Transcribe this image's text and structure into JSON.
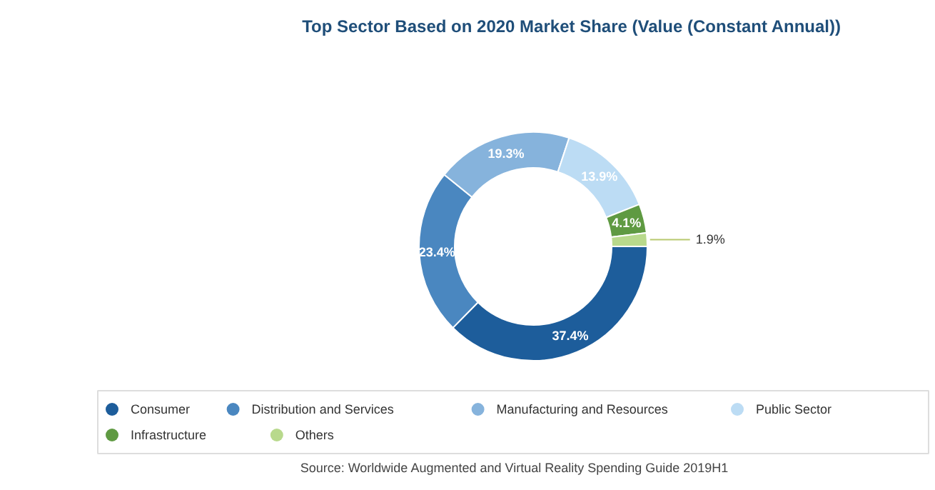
{
  "chart_data": {
    "type": "donut",
    "title": "Top Sector Based on 2020 Market Share (Value (Constant Annual))",
    "categories": [
      "Consumer",
      "Distribution and Services",
      "Manufacturing and Resources",
      "Public Sector",
      "Infrastructure",
      "Others"
    ],
    "values": [
      37.4,
      23.4,
      19.3,
      13.9,
      4.1,
      1.9
    ],
    "colors": [
      "#1d5d9b",
      "#4a87c0",
      "#86b3dc",
      "#bcdcf4",
      "#5f9a42",
      "#b8d98c"
    ],
    "value_labels": [
      "37.4%",
      "23.4%",
      "19.3%",
      "13.9%",
      "4.1%",
      "1.9%"
    ],
    "legend": "bottom",
    "annotations": [
      "Source: Worldwide Augmented and Virtual Reality Spending Guide 2019H1"
    ]
  }
}
